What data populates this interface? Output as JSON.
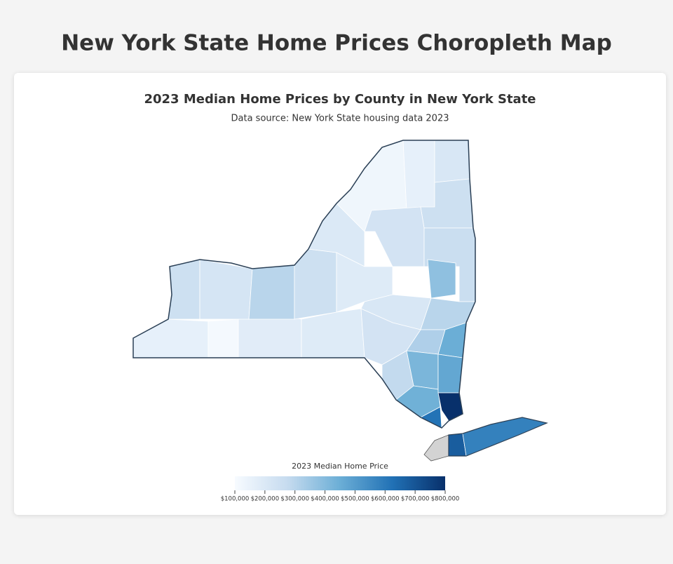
{
  "page_title": "New York State Home Prices Choropleth Map",
  "map": {
    "type": "choropleth",
    "title": "2023 Median Home Prices by County in New York State",
    "subtitle": "Data source: New York State housing data 2023",
    "values": [
      160000,
      110000,
      180000,
      190000,
      250000,
      220000,
      300000,
      250000,
      200000,
      130000,
      160000,
      210000,
      250000,
      230000,
      190000,
      260000,
      380000,
      210000,
      300000,
      230000,
      320000,
      450000,
      280000,
      420000,
      440000,
      470000,
      800000,
      620000,
      680000,
      580000
    ],
    "colorscale": [
      "#f7fbff",
      "#c6dbef",
      "#6baed6",
      "#2171b5",
      "#08306b"
    ],
    "no_data_color": "#d3d3d3",
    "colorbar": {
      "title": "2023 Median Home Price",
      "range": [
        100000,
        800000
      ],
      "ticks": [
        {
          "value": 100000,
          "label": "$100,000"
        },
        {
          "value": 200000,
          "label": "$200,000"
        },
        {
          "value": 300000,
          "label": "$300,000"
        },
        {
          "value": 400000,
          "label": "$400,000"
        },
        {
          "value": 500000,
          "label": "$500,000"
        },
        {
          "value": 600000,
          "label": "$600,000"
        },
        {
          "value": 700000,
          "label": "$700,000"
        },
        {
          "value": 800000,
          "label": "$800,000"
        }
      ]
    }
  }
}
